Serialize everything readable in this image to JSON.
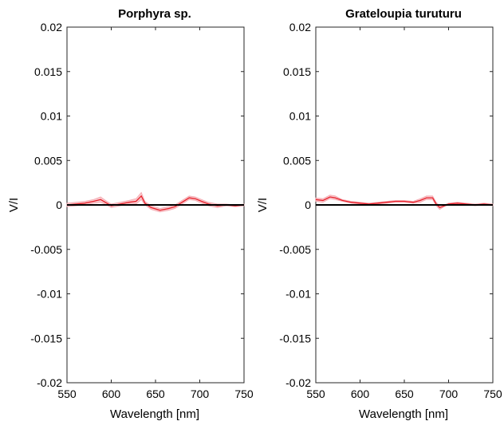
{
  "chart_data": [
    {
      "type": "line",
      "title": "Porphyra sp.",
      "xlabel": "Wavelength [nm]",
      "ylabel": "V/I",
      "xlim": [
        550,
        750
      ],
      "ylim": [
        -0.02,
        0.02
      ],
      "xticks": [
        "550",
        "600",
        "650",
        "700",
        "750"
      ],
      "yticks": [
        "0.02",
        "0.015",
        "0.01",
        "0.005",
        "0",
        "-0.005",
        "-0.01",
        "-0.015",
        "-0.02"
      ],
      "grid": false,
      "reference_line": 0,
      "series": [
        {
          "color": "#e8202a",
          "band_color": "#f4a6ae",
          "x": [
            550,
            560,
            570,
            580,
            588,
            595,
            600,
            610,
            620,
            628,
            634,
            638,
            645,
            655,
            665,
            672,
            680,
            688,
            695,
            702,
            710,
            720,
            730,
            740,
            750
          ],
          "y": [
            0.0,
            0.0001,
            0.0002,
            0.0004,
            0.0006,
            0.0002,
            -0.0001,
            0.0001,
            0.0003,
            0.0004,
            0.001,
            0.0002,
            -0.0003,
            -0.0006,
            -0.0004,
            -0.0002,
            0.0003,
            0.0008,
            0.0007,
            0.0004,
            0.0001,
            -0.0001,
            0.0,
            -0.0001,
            0.0
          ],
          "band": [
            0.0002,
            0.0002,
            0.0002,
            0.0002,
            0.0003,
            0.0002,
            0.0002,
            0.0002,
            0.0002,
            0.0003,
            0.0004,
            0.0002,
            0.0002,
            0.0002,
            0.0002,
            0.0002,
            0.0002,
            0.0002,
            0.0002,
            0.0002,
            0.0002,
            0.0002,
            0.0001,
            0.0001,
            0.0001
          ]
        }
      ]
    },
    {
      "type": "line",
      "title": "Grateloupia turuturu",
      "xlabel": "Wavelength [nm]",
      "ylabel": "V/I",
      "xlim": [
        550,
        750
      ],
      "ylim": [
        -0.02,
        0.02
      ],
      "xticks": [
        "550",
        "600",
        "650",
        "700",
        "750"
      ],
      "yticks": [
        "0.02",
        "0.015",
        "0.01",
        "0.005",
        "0",
        "-0.005",
        "-0.01",
        "-0.015",
        "-0.02"
      ],
      "grid": false,
      "reference_line": 0,
      "series": [
        {
          "color": "#e8202a",
          "band_color": "#f4a6ae",
          "x": [
            550,
            558,
            566,
            572,
            580,
            590,
            600,
            610,
            620,
            630,
            640,
            650,
            660,
            668,
            675,
            682,
            686,
            690,
            695,
            700,
            710,
            720,
            730,
            740,
            750
          ],
          "y": [
            0.0006,
            0.0005,
            0.0009,
            0.0008,
            0.0005,
            0.0003,
            0.0002,
            0.0001,
            0.0002,
            0.0003,
            0.0004,
            0.0004,
            0.0003,
            0.0005,
            0.0008,
            0.0008,
            0.0001,
            -0.0003,
            -0.0001,
            0.0001,
            0.0002,
            0.0001,
            0.0,
            0.0001,
            0.0
          ],
          "band": [
            0.0002,
            0.0002,
            0.0002,
            0.0002,
            0.0001,
            0.0001,
            0.0001,
            0.0001,
            0.0001,
            0.0001,
            0.0001,
            0.0001,
            0.0001,
            0.0002,
            0.0002,
            0.0002,
            0.0002,
            0.0002,
            0.0001,
            0.0001,
            0.0001,
            0.0001,
            0.0001,
            0.0001,
            0.0001
          ]
        }
      ]
    }
  ]
}
